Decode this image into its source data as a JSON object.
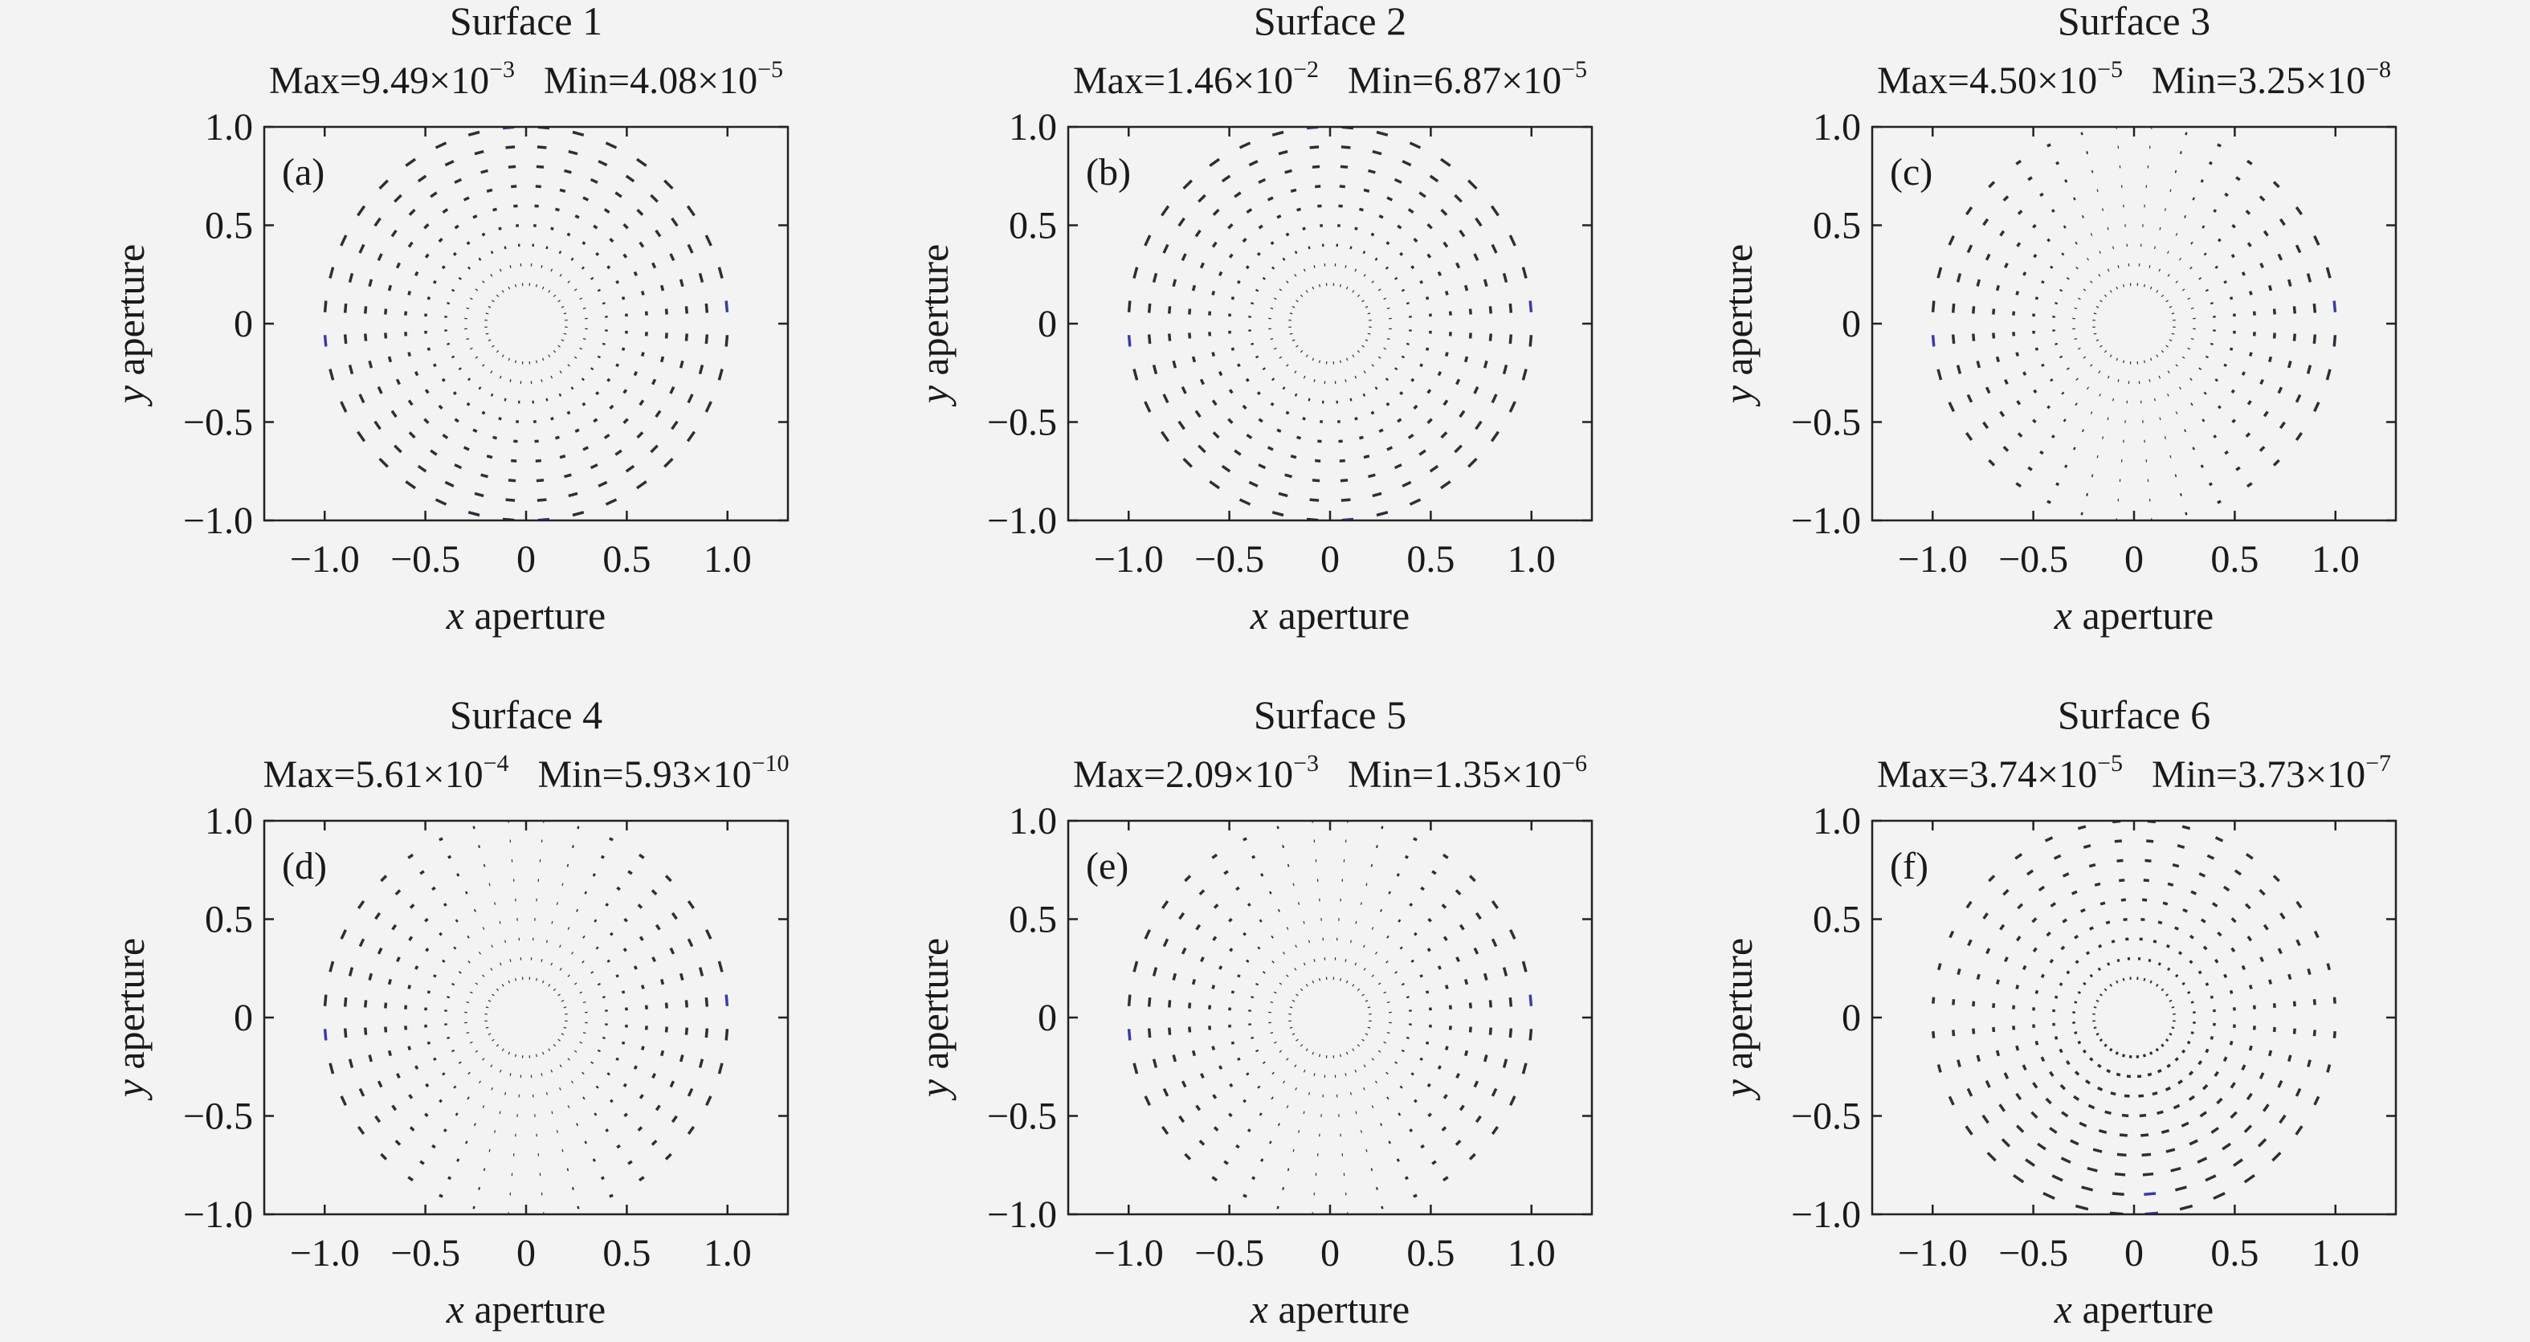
{
  "colors": {
    "background": "#f3f3f3",
    "axes": "#222222",
    "dash": "#2e2e38",
    "dash_max": "#3a3aa8"
  },
  "chart_data": [
    {
      "type": "scatter",
      "panel": "(a)",
      "title": "Surface 1",
      "max": {
        "label": "Max=",
        "mantissa": "9.49×10",
        "exp": "−3"
      },
      "min": {
        "label": "Min=",
        "mantissa": "4.08×10",
        "exp": "−5"
      },
      "xlabel_var": "x",
      "xlabel_rest": " aperture",
      "ylabel_var": "y",
      "ylabel_rest": " aperture",
      "xlim": [
        -1.3,
        1.3
      ],
      "ylim": [
        -1.0,
        1.0
      ],
      "xticks": [
        -1.0,
        -0.5,
        0,
        0.5,
        1.0
      ],
      "yticks": [
        -1.0,
        -0.5,
        0,
        0.5,
        1.0
      ],
      "xtick_labels": [
        "−1.0",
        "−0.5",
        "0",
        "0.5",
        "1.0"
      ],
      "ytick_labels": [
        "−1.0",
        "−0.5",
        "0",
        "0.5",
        "1.0"
      ],
      "field_pattern": "uniform-azimuthal",
      "aperture_radius": 1.0
    },
    {
      "type": "scatter",
      "panel": "(b)",
      "title": "Surface 2",
      "max": {
        "label": "Max=",
        "mantissa": "1.46×10",
        "exp": "−2"
      },
      "min": {
        "label": "Min=",
        "mantissa": "6.87×10",
        "exp": "−5"
      },
      "xlabel_var": "x",
      "xlabel_rest": " aperture",
      "ylabel_var": "y",
      "ylabel_rest": " aperture",
      "xlim": [
        -1.3,
        1.3
      ],
      "ylim": [
        -1.0,
        1.0
      ],
      "xticks": [
        -1.0,
        -0.5,
        0,
        0.5,
        1.0
      ],
      "yticks": [
        -1.0,
        -0.5,
        0,
        0.5,
        1.0
      ],
      "xtick_labels": [
        "−1.0",
        "−0.5",
        "0",
        "0.5",
        "1.0"
      ],
      "ytick_labels": [
        "−1.0",
        "−0.5",
        "0",
        "0.5",
        "1.0"
      ],
      "field_pattern": "uniform-azimuthal",
      "aperture_radius": 1.0
    },
    {
      "type": "scatter",
      "panel": "(c)",
      "title": "Surface 3",
      "max": {
        "label": "Max=",
        "mantissa": "4.50×10",
        "exp": "−5"
      },
      "min": {
        "label": "Min=",
        "mantissa": "3.25×10",
        "exp": "−8"
      },
      "xlabel_var": "x",
      "xlabel_rest": " aperture",
      "ylabel_var": "y",
      "ylabel_rest": " aperture",
      "xlim": [
        -1.3,
        1.3
      ],
      "ylim": [
        -1.0,
        1.0
      ],
      "xticks": [
        -1.0,
        -0.5,
        0,
        0.5,
        1.0
      ],
      "yticks": [
        -1.0,
        -0.5,
        0,
        0.5,
        1.0
      ],
      "xtick_labels": [
        "−1.0",
        "−0.5",
        "0",
        "0.5",
        "1.0"
      ],
      "ytick_labels": [
        "−1.0",
        "−0.5",
        "0",
        "0.5",
        "1.0"
      ],
      "field_pattern": "x-weighted-azimuthal",
      "aperture_radius": 1.0
    },
    {
      "type": "scatter",
      "panel": "(d)",
      "title": "Surface 4",
      "max": {
        "label": "Max=",
        "mantissa": "5.61×10",
        "exp": "−4"
      },
      "min": {
        "label": "Min=",
        "mantissa": "5.93×10",
        "exp": "−10"
      },
      "xlabel_var": "x",
      "xlabel_rest": " aperture",
      "ylabel_var": "y",
      "ylabel_rest": " aperture",
      "xlim": [
        -1.3,
        1.3
      ],
      "ylim": [
        -1.0,
        1.0
      ],
      "xticks": [
        -1.0,
        -0.5,
        0,
        0.5,
        1.0
      ],
      "yticks": [
        -1.0,
        -0.5,
        0,
        0.5,
        1.0
      ],
      "xtick_labels": [
        "−1.0",
        "−0.5",
        "0",
        "0.5",
        "1.0"
      ],
      "ytick_labels": [
        "−1.0",
        "−0.5",
        "0",
        "0.5",
        "1.0"
      ],
      "field_pattern": "x-weighted-azimuthal",
      "aperture_radius": 1.0
    },
    {
      "type": "scatter",
      "panel": "(e)",
      "title": "Surface 5",
      "max": {
        "label": "Max=",
        "mantissa": "2.09×10",
        "exp": "−3"
      },
      "min": {
        "label": "Min=",
        "mantissa": "1.35×10",
        "exp": "−6"
      },
      "xlabel_var": "x",
      "xlabel_rest": " aperture",
      "ylabel_var": "y",
      "ylabel_rest": " aperture",
      "xlim": [
        -1.3,
        1.3
      ],
      "ylim": [
        -1.0,
        1.0
      ],
      "xticks": [
        -1.0,
        -0.5,
        0,
        0.5,
        1.0
      ],
      "yticks": [
        -1.0,
        -0.5,
        0,
        0.5,
        1.0
      ],
      "xtick_labels": [
        "−1.0",
        "−0.5",
        "0",
        "0.5",
        "1.0"
      ],
      "ytick_labels": [
        "−1.0",
        "−0.5",
        "0",
        "0.5",
        "1.0"
      ],
      "field_pattern": "x-weighted-azimuthal",
      "aperture_radius": 1.0
    },
    {
      "type": "scatter",
      "panel": "(f)",
      "title": "Surface 6",
      "max": {
        "label": "Max=",
        "mantissa": "3.74×10",
        "exp": "−5"
      },
      "min": {
        "label": "Min=",
        "mantissa": "3.73×10",
        "exp": "−7"
      },
      "xlabel_var": "x",
      "xlabel_rest": " aperture",
      "ylabel_var": "y",
      "ylabel_rest": " aperture",
      "xlim": [
        -1.3,
        1.3
      ],
      "ylim": [
        -1.0,
        1.0
      ],
      "xticks": [
        -1.0,
        -0.5,
        0,
        0.5,
        1.0
      ],
      "yticks": [
        -1.0,
        -0.5,
        0,
        0.5,
        1.0
      ],
      "xtick_labels": [
        "−1.0",
        "−0.5",
        "0",
        "0.5",
        "1.0"
      ],
      "ytick_labels": [
        "−1.0",
        "−0.5",
        "0",
        "0.5",
        "1.0"
      ],
      "field_pattern": "tangential-y-weighted",
      "aperture_radius": 1.0
    }
  ]
}
